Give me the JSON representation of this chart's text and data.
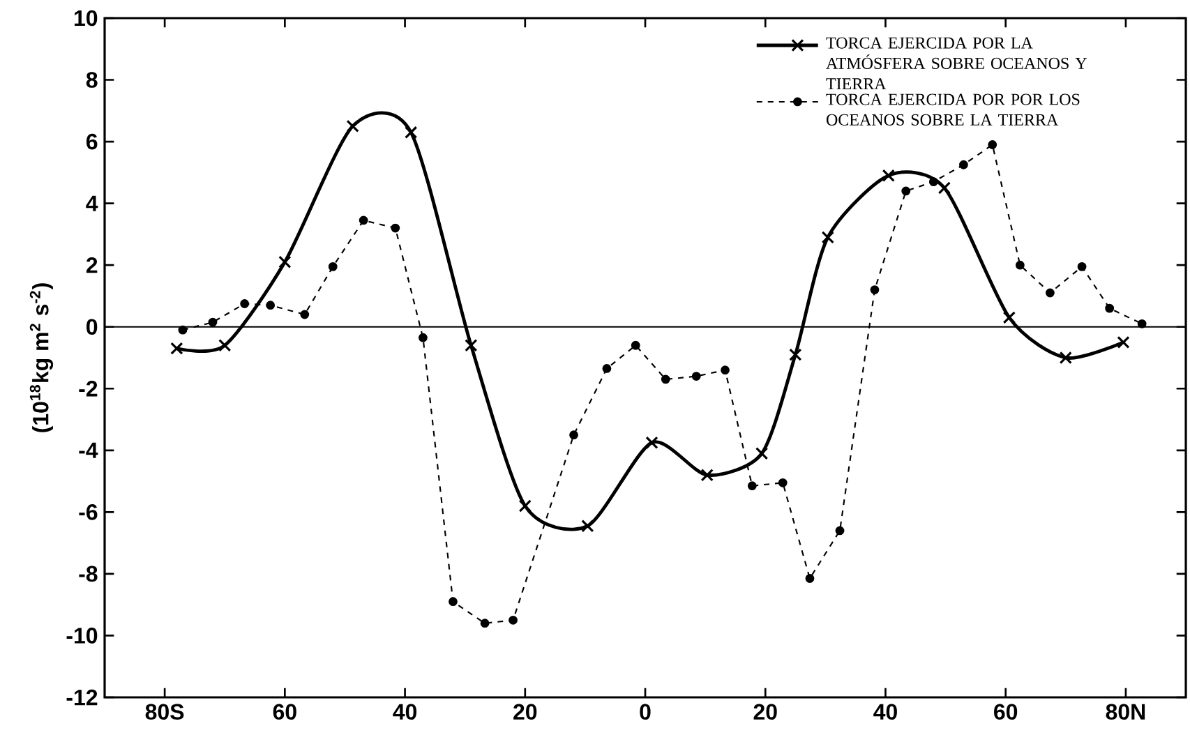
{
  "chart_data": {
    "type": "line",
    "ylabel": "(10$^{18}$kg m$^{2}$ s$^{-2}$)",
    "xlim": [
      -90,
      90
    ],
    "xticks": [
      {
        "value": -80,
        "label": "80S"
      },
      {
        "value": -60,
        "label": "60"
      },
      {
        "value": -40,
        "label": "40"
      },
      {
        "value": -20,
        "label": "20"
      },
      0,
      20,
      40,
      60,
      {
        "value": 80,
        "label": "80N"
      }
    ],
    "ylim": [
      -12,
      10
    ],
    "yticks": [
      -12,
      -10,
      -8,
      -6,
      -4,
      -2,
      0,
      2,
      4,
      6,
      8,
      10
    ],
    "grid": false,
    "legend": "top right",
    "ref_lines": [
      {
        "axis": "y",
        "value": 0,
        "color": "#000000",
        "line_style": "solid"
      }
    ],
    "series": [
      {
        "name": "TORCA EJERCIDA POR LA ATMÓSFERA SOBRE OCEANOS Y TIERRA",
        "color": "#000000",
        "marker": "cross",
        "line_style": "solid",
        "x": [
          -78,
          -70,
          -60,
          -48.7,
          -39,
          -29,
          -20,
          -9.6,
          1.1,
          10.3,
          19.4,
          25,
          30.4,
          40.5,
          49.8,
          60.6,
          70,
          79.6
        ],
        "values": [
          -0.7,
          -0.6,
          2.1,
          6.5,
          6.3,
          -0.6,
          -5.8,
          -6.45,
          -3.75,
          -4.8,
          -4.1,
          -0.9,
          2.9,
          4.9,
          4.5,
          0.3,
          -1.0,
          -0.5
        ]
      },
      {
        "name": "TORCA EJERCIDA POR POR LOS OCEANOS SOBRE LA TIERRA",
        "color": "#000000",
        "marker": "circle",
        "line_style": "dashed",
        "x": [
          -77,
          -72,
          -66.7,
          -62.4,
          -56.7,
          -52,
          -46.9,
          -41.6,
          -37,
          -32,
          -26.7,
          -22,
          -11.9,
          -6.4,
          -1.6,
          3.4,
          8.5,
          13.3,
          17.8,
          22.9,
          27.4,
          32.4,
          38.2,
          43.4,
          48,
          53,
          57.8,
          62.4,
          67.4,
          72.7,
          77.3,
          82.7
        ],
        "values": [
          -0.1,
          0.15,
          0.75,
          0.7,
          0.4,
          1.95,
          3.45,
          3.2,
          -0.35,
          -8.9,
          -9.6,
          -9.5,
          -3.5,
          -1.35,
          -0.6,
          -1.7,
          -1.6,
          -1.4,
          -5.15,
          -5.05,
          -8.15,
          -6.6,
          1.2,
          4.4,
          4.7,
          5.25,
          5.9,
          2.0,
          1.1,
          1.95,
          0.6,
          0.1
        ]
      }
    ]
  }
}
